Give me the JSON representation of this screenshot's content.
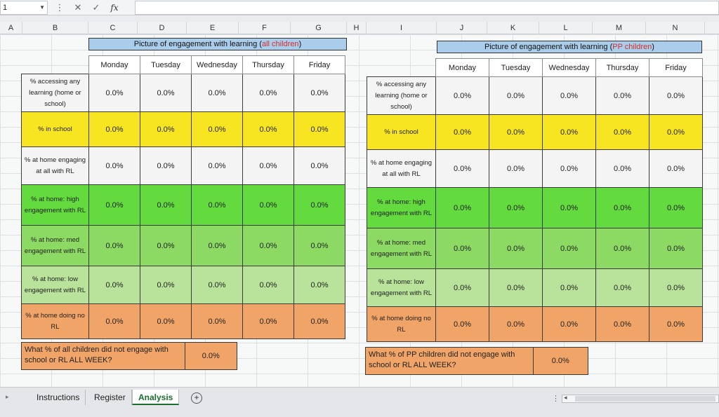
{
  "formula_bar": {
    "name_box": "1",
    "cancel_icon": "✕",
    "enter_icon": "✓",
    "fx_label": "fx",
    "formula": ""
  },
  "columns": [
    "A",
    "B",
    "C",
    "D",
    "E",
    "F",
    "G",
    "H",
    "I",
    "J",
    "K",
    "L",
    "M",
    "N"
  ],
  "row_labels": [
    "% accessing any learning (home or school)",
    "% in school",
    "% at home engaging at all with RL",
    "% at home: high engagement with RL",
    "% at home: med engagement with RL",
    "% at home: low engagement with RL",
    "% at home doing no RL"
  ],
  "days": [
    "Monday",
    "Tuesday",
    "Wednesday",
    "Thursday",
    "Friday"
  ],
  "left_table": {
    "title_prefix": "Picture of engagement with learning (",
    "title_highlight": "all children",
    "title_suffix": ")",
    "values": [
      [
        "0.0%",
        "0.0%",
        "0.0%",
        "0.0%",
        "0.0%"
      ],
      [
        "0.0%",
        "0.0%",
        "0.0%",
        "0.0%",
        "0.0%"
      ],
      [
        "0.0%",
        "0.0%",
        "0.0%",
        "0.0%",
        "0.0%"
      ],
      [
        "0.0%",
        "0.0%",
        "0.0%",
        "0.0%",
        "0.0%"
      ],
      [
        "0.0%",
        "0.0%",
        "0.0%",
        "0.0%",
        "0.0%"
      ],
      [
        "0.0%",
        "0.0%",
        "0.0%",
        "0.0%",
        "0.0%"
      ],
      [
        "0.0%",
        "0.0%",
        "0.0%",
        "0.0%",
        "0.0%"
      ]
    ],
    "question": "What % of all children did not engage with school or RL ALL WEEK?",
    "answer": "0.0%"
  },
  "right_table": {
    "title_prefix": "Picture of engagement with learning (",
    "title_highlight": "PP children",
    "title_suffix": ")",
    "values": [
      [
        "0.0%",
        "0.0%",
        "0.0%",
        "0.0%",
        "0.0%"
      ],
      [
        "0.0%",
        "0.0%",
        "0.0%",
        "0.0%",
        "0.0%"
      ],
      [
        "0.0%",
        "0.0%",
        "0.0%",
        "0.0%",
        "0.0%"
      ],
      [
        "0.0%",
        "0.0%",
        "0.0%",
        "0.0%",
        "0.0%"
      ],
      [
        "0.0%",
        "0.0%",
        "0.0%",
        "0.0%",
        "0.0%"
      ],
      [
        "0.0%",
        "0.0%",
        "0.0%",
        "0.0%",
        "0.0%"
      ],
      [
        "0.0%",
        "0.0%",
        "0.0%",
        "0.0%",
        "0.0%"
      ]
    ],
    "question": "What % of PP children did not engage with school or RL ALL WEEK?",
    "answer": "0.0%"
  },
  "sheet_tabs": [
    "Instructions",
    "Register",
    "Analysis"
  ],
  "active_tab": "Analysis",
  "add_sheet_label": "+",
  "scroll_dots": "⋮",
  "scroll_left": "◂",
  "colors": {
    "title_bg": "#a9cdea",
    "highlight_text": "#d0312d",
    "school_yellow": "#f8e521",
    "high_green": "#63db3e",
    "med_green": "#8cda64",
    "low_green": "#b9e29b",
    "no_rl_orange": "#f0a467",
    "active_tab_green": "#1c6e2e"
  }
}
